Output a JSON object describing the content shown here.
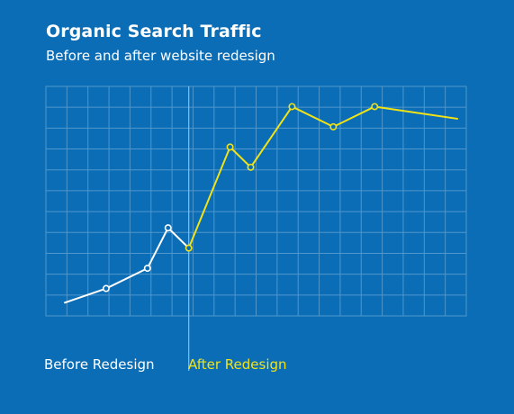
{
  "chart_data": {
    "type": "line",
    "title": "Organic Search Traffic",
    "subtitle": "Before and after website redesign",
    "xlabel": "",
    "ylabel": "",
    "x": [
      1,
      2,
      3,
      4,
      5,
      6,
      7,
      8,
      9,
      10,
      11,
      12,
      13,
      14,
      15,
      16,
      17,
      18,
      19,
      20
    ],
    "ylim": [
      0,
      11
    ],
    "grid": true,
    "divider_after_x": 6,
    "series": [
      {
        "name": "Before Redesign",
        "color": "#ffffff",
        "points": [
          {
            "x": 1,
            "y": 0.3,
            "marker": false
          },
          {
            "x": 3,
            "y": 1.0,
            "marker": true
          },
          {
            "x": 5,
            "y": 2.0,
            "marker": true
          },
          {
            "x": 6,
            "y": 4.0,
            "marker": true
          },
          {
            "x": 7,
            "y": 3.0,
            "marker": false
          }
        ]
      },
      {
        "name": "After Redesign",
        "color": "#f2e317",
        "points": [
          {
            "x": 7,
            "y": 3.0,
            "marker": true
          },
          {
            "x": 9,
            "y": 8.0,
            "marker": true
          },
          {
            "x": 10,
            "y": 7.0,
            "marker": true
          },
          {
            "x": 12,
            "y": 10.0,
            "marker": true
          },
          {
            "x": 14,
            "y": 9.0,
            "marker": true
          },
          {
            "x": 16,
            "y": 10.0,
            "marker": true
          },
          {
            "x": 20,
            "y": 9.4,
            "marker": false
          }
        ]
      }
    ],
    "legend_position": "bottom-left"
  },
  "colors": {
    "background": "#0b6db5",
    "grid": "#4f97cc",
    "divider": "#8ebde0"
  }
}
